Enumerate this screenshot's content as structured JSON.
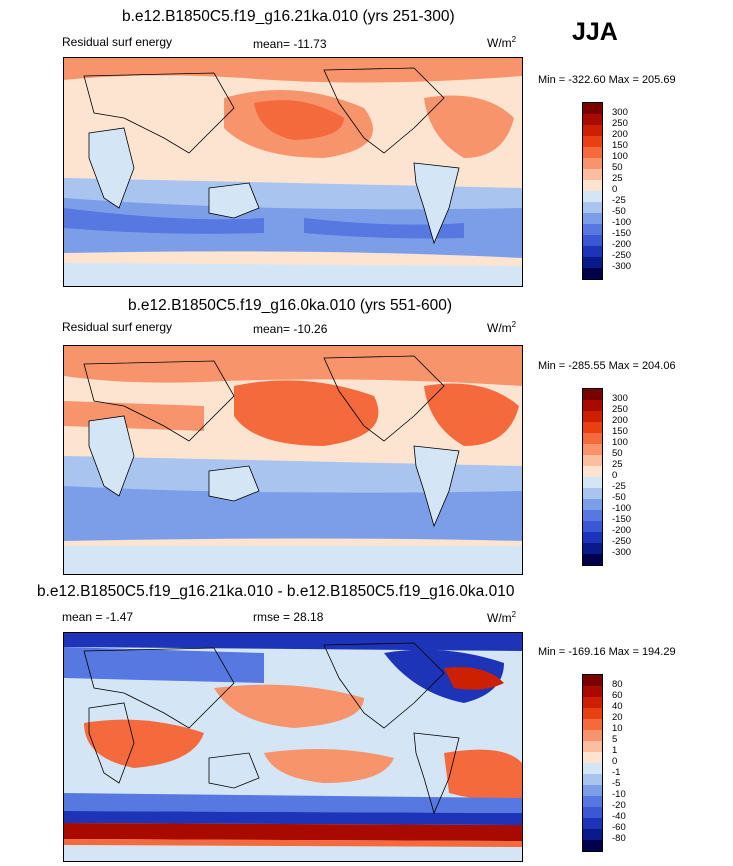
{
  "season": "JJA",
  "units_plain": "W/m",
  "units_sup": "2",
  "panels": [
    {
      "title": "b.e12.B1850C5.f19_g16.21ka.010 (yrs 251-300)",
      "left": "Residual surf energy",
      "center": "mean= -11.73",
      "minmax": "Min = -322.60 Max = 205.69",
      "levels": [
        "300",
        "250",
        "200",
        "150",
        "100",
        "50",
        "25",
        "0",
        "-25",
        "-50",
        "-100",
        "-150",
        "-200",
        "-250",
        "-300"
      ]
    },
    {
      "title": "b.e12.B1850C5.f19_g16.0ka.010 (yrs 551-600)",
      "left": "Residual surf energy",
      "center": "mean= -10.26",
      "minmax": "Min = -285.55 Max = 204.06",
      "levels": [
        "300",
        "250",
        "200",
        "150",
        "100",
        "50",
        "25",
        "0",
        "-25",
        "-50",
        "-100",
        "-150",
        "-200",
        "-250",
        "-300"
      ]
    },
    {
      "title": "b.e12.B1850C5.f19_g16.21ka.010 - b.e12.B1850C5.f19_g16.0ka.010",
      "left": "mean =  -1.47",
      "center": "rmse =  28.18",
      "minmax": "Min = -169.16 Max = 194.29",
      "levels": [
        "80",
        "60",
        "40",
        "20",
        "10",
        "5",
        "1",
        "0",
        "-1",
        "-5",
        "-10",
        "-20",
        "-40",
        "-60",
        "-80"
      ]
    }
  ],
  "colors": {
    "scale": [
      "#7a0000",
      "#a80a00",
      "#cc2000",
      "#e84010",
      "#f46a3c",
      "#f8946c",
      "#fbbe9e",
      "#fde4d0",
      "#d4e6f6",
      "#a8c4ef",
      "#7c9ee9",
      "#5678e0",
      "#3a58d4",
      "#1e34b8",
      "#0a1a88",
      "#00004c"
    ],
    "coast": "#000000"
  }
}
